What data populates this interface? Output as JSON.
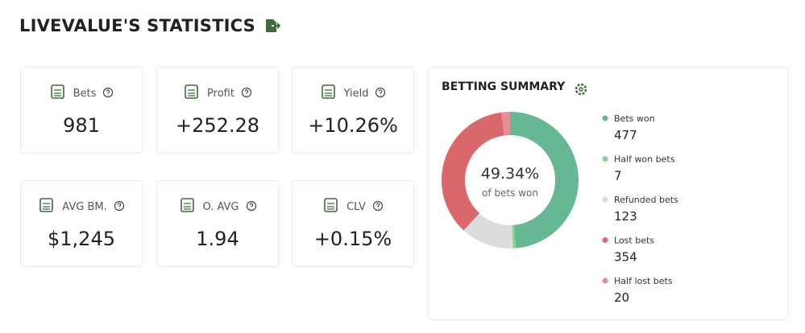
{
  "header": {
    "title": "LIVEVALUE'S STATISTICS"
  },
  "stats": [
    {
      "label": "Bets",
      "value": 981
    },
    {
      "label": "Profit",
      "value": "+252.28"
    },
    {
      "label": "Yield",
      "value": "+10.26%"
    },
    {
      "label": "AVG BM.",
      "value": "$1,245"
    },
    {
      "label": "O. AVG",
      "value": 1.94
    },
    {
      "label": "CLV",
      "value": "+0.15%"
    }
  ],
  "chart_data": {
    "type": "donut",
    "title": "BETTING SUMMARY",
    "center_value": "49.34%",
    "center_label": "of bets won",
    "categories": [
      "Bets won",
      "Half won bets",
      "Refunded bets",
      "Lost bets",
      "Half lost bets"
    ],
    "values": [
      477,
      7,
      123,
      354,
      20
    ],
    "colors": [
      "#66b894",
      "#84d68f",
      "#dcdcdc",
      "#d9686c",
      "#e58f93"
    ]
  }
}
